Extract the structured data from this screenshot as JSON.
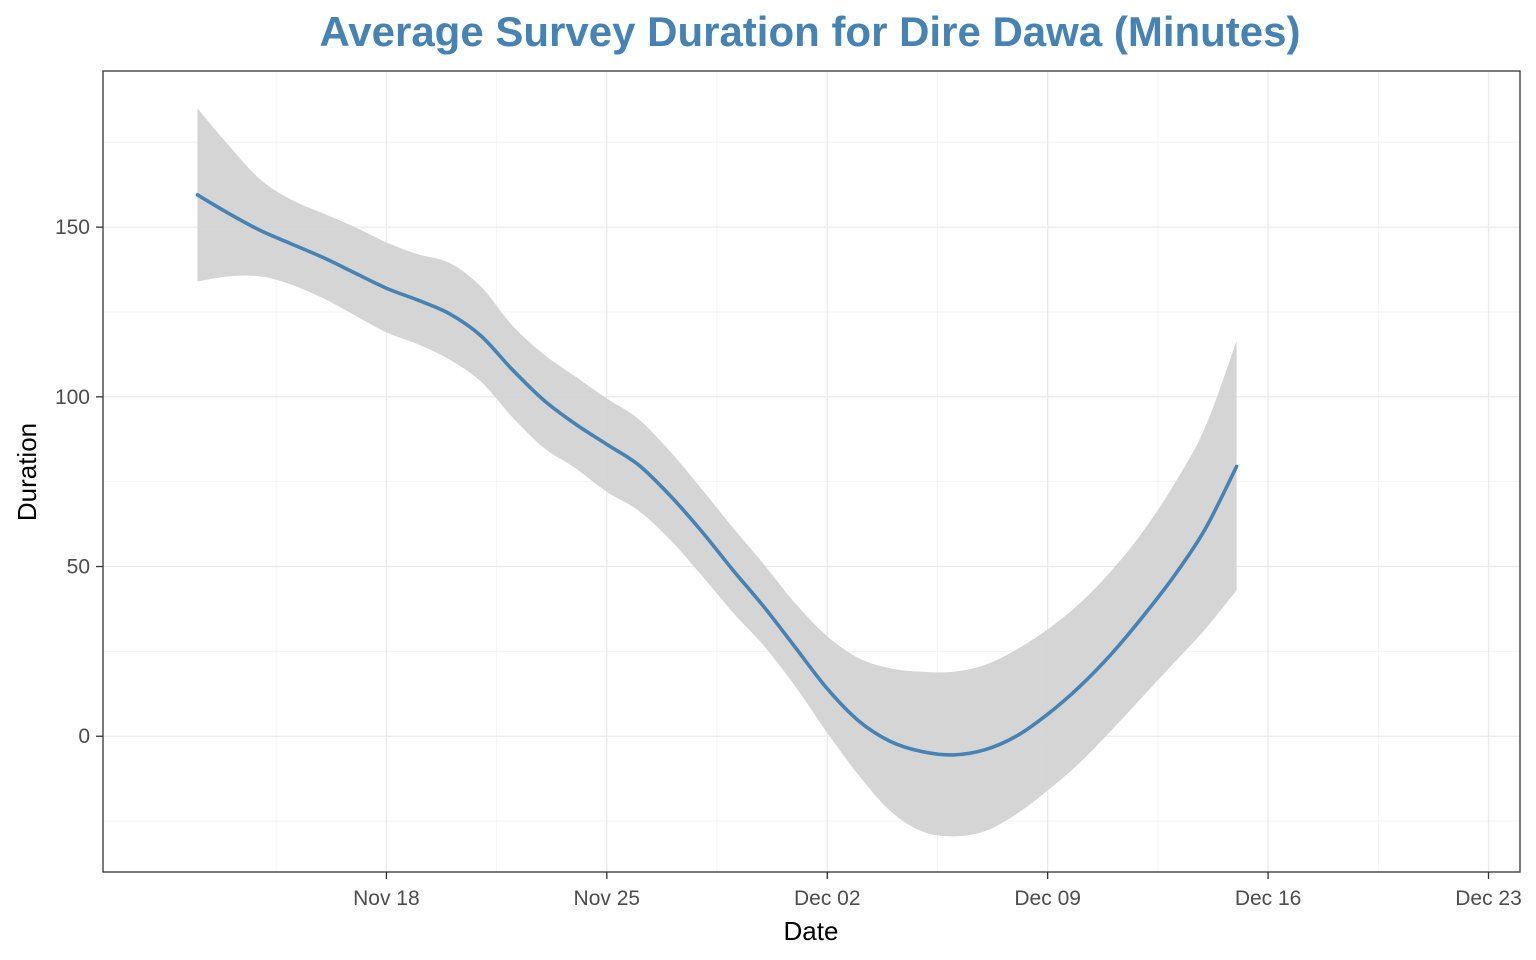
{
  "colors": {
    "line": "#4682b4",
    "band": "#d3d3d3",
    "title": "#4682b4",
    "grid_major": "#ebebeb",
    "grid_minor": "#f4f4f4",
    "panel_border": "#333333"
  },
  "chart_data": {
    "type": "line",
    "title": "Average Survey Duration for Dire Dawa (Minutes)",
    "xlabel": "Date",
    "ylabel": "Duration",
    "x_axis_type": "date",
    "xlim": [
      "2024-11-09",
      "2024-12-24"
    ],
    "ylim": [
      -40,
      196
    ],
    "x_ticks": [
      {
        "date": "2024-11-18",
        "label": "Nov 18"
      },
      {
        "date": "2024-11-25",
        "label": "Nov 25"
      },
      {
        "date": "2024-12-02",
        "label": "Dec 02"
      },
      {
        "date": "2024-12-09",
        "label": "Dec 09"
      },
      {
        "date": "2024-12-16",
        "label": "Dec 16"
      },
      {
        "date": "2024-12-23",
        "label": "Dec 23"
      }
    ],
    "y_ticks": [
      0,
      50,
      100,
      150
    ],
    "grid": true,
    "legend": "none",
    "series": [
      {
        "points": [
          {
            "x": "2024-11-12",
            "y": 159.5,
            "lower": 134,
            "upper": 185
          },
          {
            "x": "2024-11-13",
            "y": 154,
            "lower": 135.5,
            "upper": 174
          },
          {
            "x": "2024-11-14",
            "y": 149,
            "lower": 135.5,
            "upper": 164
          },
          {
            "x": "2024-11-15",
            "y": 145,
            "lower": 133,
            "upper": 158
          },
          {
            "x": "2024-11-16",
            "y": 141,
            "lower": 129,
            "upper": 154
          },
          {
            "x": "2024-11-17",
            "y": 136.5,
            "lower": 124,
            "upper": 150
          },
          {
            "x": "2024-11-18",
            "y": 132,
            "lower": 119,
            "upper": 145.5
          },
          {
            "x": "2024-11-19",
            "y": 128.5,
            "lower": 115.5,
            "upper": 142
          },
          {
            "x": "2024-11-20",
            "y": 124.5,
            "lower": 111,
            "upper": 139.5
          },
          {
            "x": "2024-11-21",
            "y": 118,
            "lower": 104.5,
            "upper": 132.5
          },
          {
            "x": "2024-11-22",
            "y": 108,
            "lower": 94,
            "upper": 121
          },
          {
            "x": "2024-11-23",
            "y": 99,
            "lower": 85,
            "upper": 112.5
          },
          {
            "x": "2024-11-24",
            "y": 92,
            "lower": 79,
            "upper": 106
          },
          {
            "x": "2024-11-25",
            "y": 86,
            "lower": 72,
            "upper": 99.5
          },
          {
            "x": "2024-11-26",
            "y": 80,
            "lower": 66.5,
            "upper": 93.5
          },
          {
            "x": "2024-11-27",
            "y": 71,
            "lower": 58,
            "upper": 84
          },
          {
            "x": "2024-11-28",
            "y": 60.5,
            "lower": 47.5,
            "upper": 73
          },
          {
            "x": "2024-11-29",
            "y": 49,
            "lower": 36.5,
            "upper": 61.5
          },
          {
            "x": "2024-11-30",
            "y": 38,
            "lower": 26.5,
            "upper": 50.5
          },
          {
            "x": "2024-12-01",
            "y": 26,
            "lower": 14.5,
            "upper": 39
          },
          {
            "x": "2024-12-02",
            "y": 14,
            "lower": 1,
            "upper": 29.5
          },
          {
            "x": "2024-12-03",
            "y": 4.5,
            "lower": -11.5,
            "upper": 23
          },
          {
            "x": "2024-12-04",
            "y": -1.5,
            "lower": -22,
            "upper": 20
          },
          {
            "x": "2024-12-05",
            "y": -4.5,
            "lower": -28,
            "upper": 19
          },
          {
            "x": "2024-12-06",
            "y": -5.5,
            "lower": -29.5,
            "upper": 19
          },
          {
            "x": "2024-12-07",
            "y": -4,
            "lower": -28,
            "upper": 21
          },
          {
            "x": "2024-12-08",
            "y": 0,
            "lower": -23,
            "upper": 25.5
          },
          {
            "x": "2024-12-09",
            "y": 6.5,
            "lower": -16,
            "upper": 31.5
          },
          {
            "x": "2024-12-10",
            "y": 14.5,
            "lower": -8,
            "upper": 39
          },
          {
            "x": "2024-12-11",
            "y": 24,
            "lower": 1.5,
            "upper": 48.5
          },
          {
            "x": "2024-12-12",
            "y": 35,
            "lower": 11.5,
            "upper": 60
          },
          {
            "x": "2024-12-13",
            "y": 47,
            "lower": 21.5,
            "upper": 74
          },
          {
            "x": "2024-12-14",
            "y": 61,
            "lower": 31.5,
            "upper": 91
          },
          {
            "x": "2024-12-15",
            "y": 79.5,
            "lower": 43,
            "upper": 116.5
          }
        ]
      }
    ]
  }
}
